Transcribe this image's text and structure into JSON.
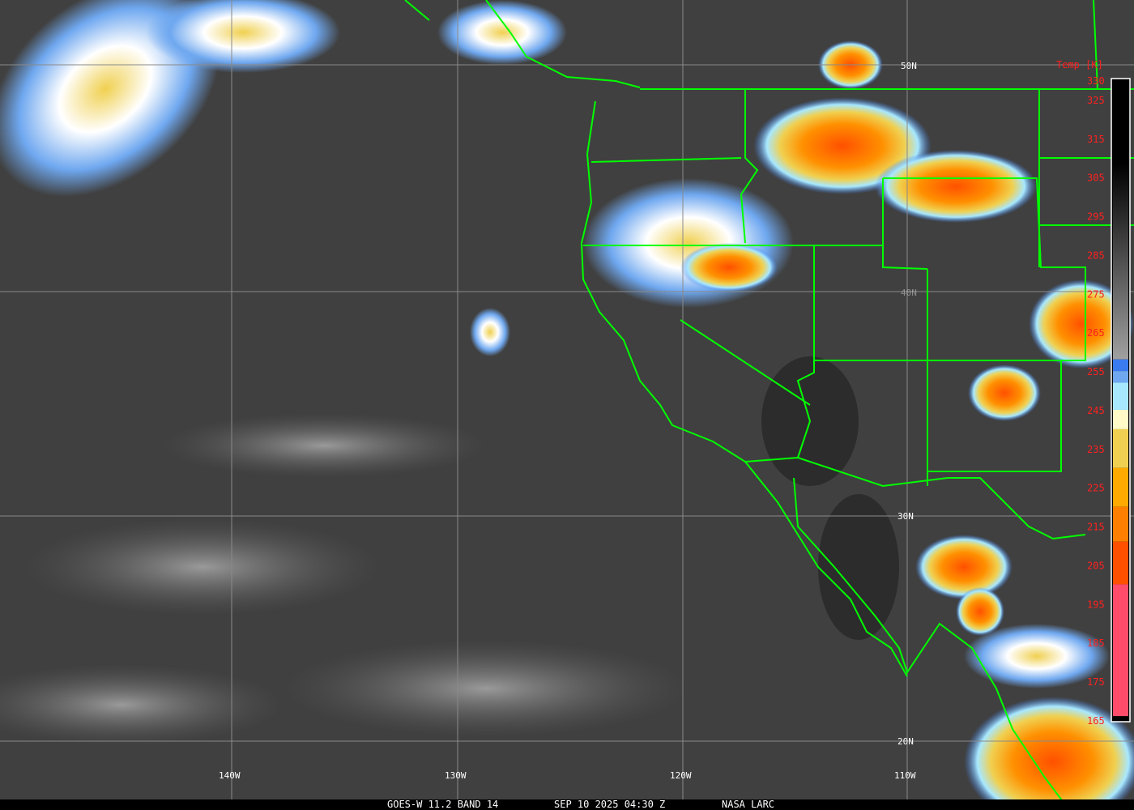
{
  "caption": {
    "satellite": "GOES-W 11.2 BAND 14",
    "datetime": "SEP 10 2025 04:30 Z",
    "source": "NASA LARC"
  },
  "grid": {
    "latitudes": [
      "50N",
      "40N",
      "30N",
      "20N"
    ],
    "longitudes": [
      "140W",
      "130W",
      "120W",
      "110W"
    ]
  },
  "colorbar": {
    "title": "Temp [K]",
    "ticks": [
      "330",
      "325",
      "315",
      "305",
      "295",
      "285",
      "275",
      "265",
      "255",
      "245",
      "235",
      "225",
      "215",
      "205",
      "195",
      "185",
      "175",
      "165"
    ],
    "segments": [
      {
        "from": 330,
        "to": 258,
        "color": "gradient-black-to-gray"
      },
      {
        "from": 258,
        "to": 255,
        "color": "#3a7cf0"
      },
      {
        "from": 255,
        "to": 252,
        "color": "#6fa8f0"
      },
      {
        "from": 252,
        "to": 245,
        "color": "#a8e8ff"
      },
      {
        "from": 245,
        "to": 240,
        "color": "#fffac8"
      },
      {
        "from": 240,
        "to": 230,
        "color": "#f0d050"
      },
      {
        "from": 230,
        "to": 220,
        "color": "#ffaa00"
      },
      {
        "from": 220,
        "to": 211,
        "color": "#ff8000"
      },
      {
        "from": 211,
        "to": 200,
        "color": "#ff5000"
      },
      {
        "from": 200,
        "to": 166,
        "color": "#ff4c6a"
      },
      {
        "from": 166,
        "to": 165,
        "color": "#000000"
      }
    ]
  },
  "colors": {
    "borders": "#00ff00",
    "labels": "#ff2020",
    "grid": "#8a8a8a"
  }
}
